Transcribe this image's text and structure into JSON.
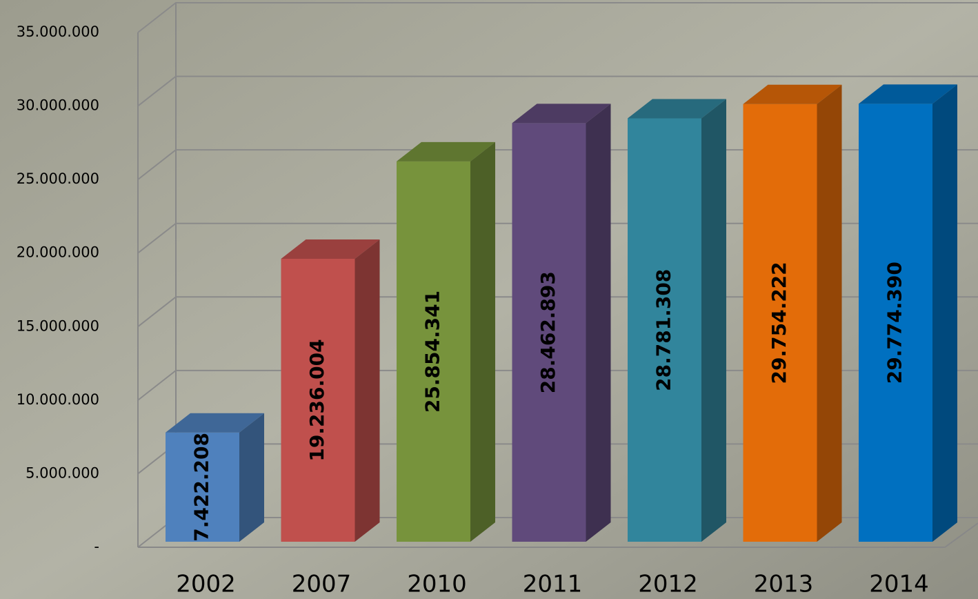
{
  "chart_data": {
    "type": "bar3d",
    "categories": [
      "2002",
      "2007",
      "2010",
      "2011",
      "2012",
      "2013",
      "2014"
    ],
    "values": [
      7422208,
      19236004,
      25854341,
      28462893,
      28781308,
      29754222,
      29774390
    ],
    "value_labels": [
      "7.422.208",
      "19.236.004",
      "25.854.341",
      "28.462.893",
      "28.781.308",
      "29.754.222",
      "29.774.390"
    ],
    "colors": [
      "#4f81bd",
      "#c0504d",
      "#77933c",
      "#604a7b",
      "#31859c",
      "#e36c09",
      "#0070c0"
    ],
    "ylim": [
      0,
      35000000
    ],
    "yticks": [
      {
        "value": 0,
        "label": "-"
      },
      {
        "value": 5000000,
        "label": "5.000.000"
      },
      {
        "value": 10000000,
        "label": "10.000.000"
      },
      {
        "value": 15000000,
        "label": "15.000.000"
      },
      {
        "value": 20000000,
        "label": "20.000.000"
      },
      {
        "value": 25000000,
        "label": "25.000.000"
      },
      {
        "value": 30000000,
        "label": "30.000.000"
      },
      {
        "value": 35000000,
        "label": "35.000.000"
      }
    ],
    "grid": true
  }
}
